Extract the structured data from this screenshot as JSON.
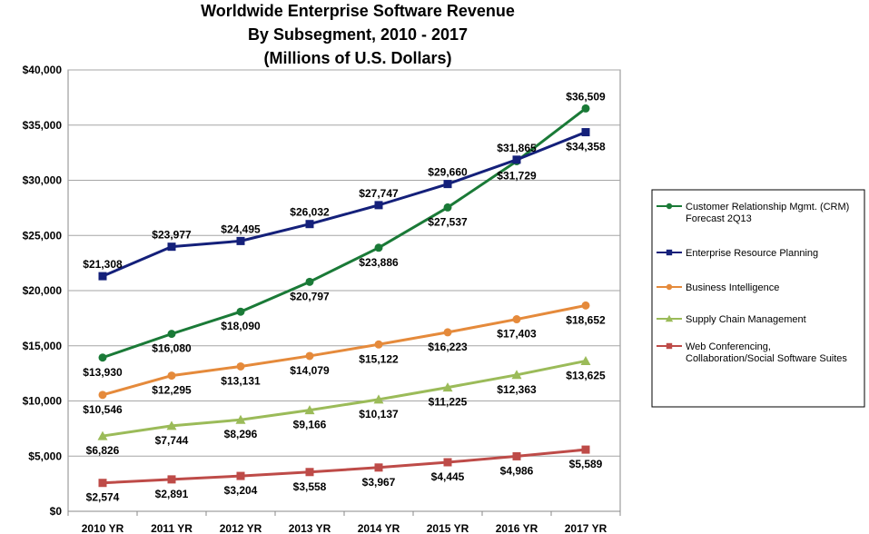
{
  "chart_data": {
    "type": "line",
    "title": [
      "Worldwide Enterprise Software Revenue",
      "By Subsegment, 2010 - 2017",
      "(Millions of U.S. Dollars)"
    ],
    "xlabel": "",
    "ylabel": "",
    "categories": [
      "2010 YR",
      "2011 YR",
      "2012 YR",
      "2013 YR",
      "2014 YR",
      "2015 YR",
      "2016 YR",
      "2017 YR"
    ],
    "ylim": [
      0,
      40000
    ],
    "yticks": [
      0,
      5000,
      10000,
      15000,
      20000,
      25000,
      30000,
      35000,
      40000
    ],
    "ytick_labels": [
      "$0",
      "$5,000",
      "$10,000",
      "$15,000",
      "$20,000",
      "$25,000",
      "$30,000",
      "$35,000",
      "$40,000"
    ],
    "grid": "horizontal",
    "legend_position": "right",
    "series": [
      {
        "name": [
          "Customer Relationship Mgmt. (CRM)",
          "Forecast  2Q13"
        ],
        "color": "#1a7a37",
        "marker": "circle",
        "values": [
          13930,
          16080,
          18090,
          20797,
          23886,
          27537,
          31729,
          36509
        ],
        "labels": [
          "$13,930",
          "$16,080",
          "$18,090",
          "$20,797",
          "$23,886",
          "$27,537",
          "$31,729",
          "$36,509"
        ],
        "label_pos": [
          "below",
          "below",
          "below",
          "below",
          "below",
          "below",
          "below",
          "above"
        ]
      },
      {
        "name": [
          "Enterprise Resource Planning"
        ],
        "color": "#14207a",
        "marker": "square",
        "values": [
          21308,
          23977,
          24495,
          26032,
          27747,
          29660,
          31865,
          34358
        ],
        "labels": [
          "$21,308",
          "$23,977",
          "$24,495",
          "$26,032",
          "$27,747",
          "$29,660",
          "$31,865",
          "$34,358"
        ],
        "label_pos": [
          "above",
          "above",
          "above",
          "above",
          "above",
          "above",
          "above",
          "below"
        ]
      },
      {
        "name": [
          "Business Intelligence"
        ],
        "color": "#e58a3b",
        "marker": "circle",
        "values": [
          10546,
          12295,
          13131,
          14079,
          15122,
          16223,
          17403,
          18652
        ],
        "labels": [
          "$10,546",
          "$12,295",
          "$13,131",
          "$14,079",
          "$15,122",
          "$16,223",
          "$17,403",
          "$18,652"
        ],
        "label_pos": [
          "below",
          "below",
          "below",
          "below",
          "below",
          "below",
          "below",
          "below"
        ]
      },
      {
        "name": [
          "Supply Chain Management"
        ],
        "color": "#9bbb59",
        "marker": "triangle",
        "values": [
          6826,
          7744,
          8296,
          9166,
          10137,
          11225,
          12363,
          13625
        ],
        "labels": [
          "$6,826",
          "$7,744",
          "$8,296",
          "$9,166",
          "$10,137",
          "$11,225",
          "$12,363",
          "$13,625"
        ],
        "label_pos": [
          "below",
          "below",
          "below",
          "below",
          "below",
          "below",
          "below",
          "below"
        ]
      },
      {
        "name": [
          "Web Conferencing,",
          "Collaboration/Social Software Suites"
        ],
        "color": "#be4b48",
        "marker": "square",
        "values": [
          2574,
          2891,
          3204,
          3558,
          3967,
          4445,
          4986,
          5589
        ],
        "labels": [
          "$2,574",
          "$2,891",
          "$3,204",
          "$3,558",
          "$3,967",
          "$4,445",
          "$4,986",
          "$5,589"
        ],
        "label_pos": [
          "below",
          "below",
          "below",
          "below",
          "below",
          "below",
          "below",
          "below"
        ]
      }
    ]
  }
}
